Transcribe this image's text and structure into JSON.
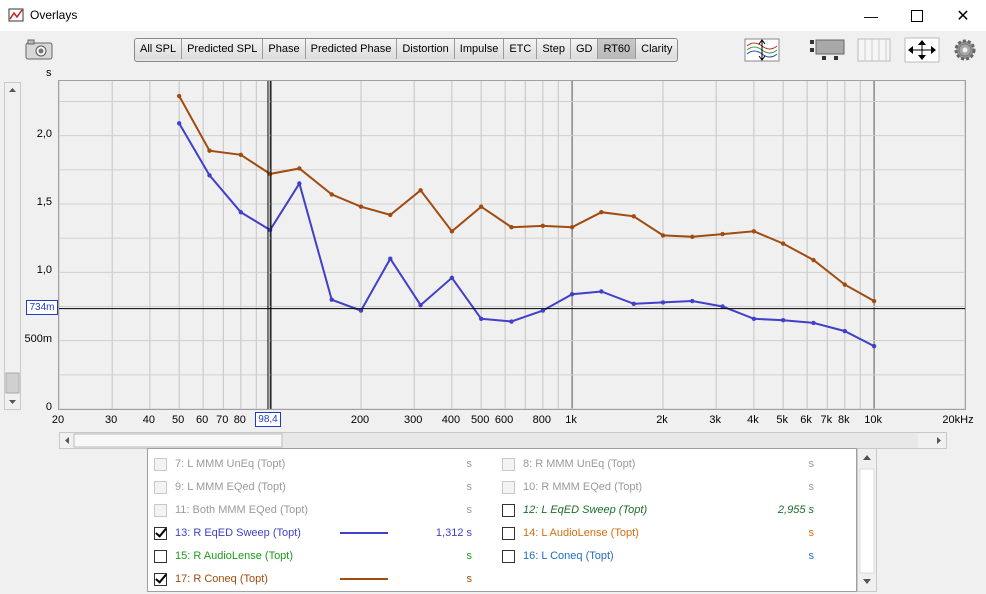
{
  "window": {
    "title": "Overlays"
  },
  "tabs": [
    {
      "label": "All SPL",
      "active": false
    },
    {
      "label": "Predicted SPL",
      "active": false
    },
    {
      "label": "Phase",
      "active": false
    },
    {
      "label": "Predicted Phase",
      "active": false
    },
    {
      "label": "Distortion",
      "active": false
    },
    {
      "label": "Impulse",
      "active": false
    },
    {
      "label": "ETC",
      "active": false
    },
    {
      "label": "Step",
      "active": false
    },
    {
      "label": "GD",
      "active": false
    },
    {
      "label": "RT60",
      "active": true
    },
    {
      "label": "Clarity",
      "active": false
    }
  ],
  "graph": {
    "unit": "s",
    "y_ticks": [
      "0",
      "500m",
      "1,0",
      "1,5",
      "2,0"
    ],
    "x_ticks": [
      "20",
      "30",
      "40",
      "50",
      "60",
      "70",
      "80",
      "",
      "200",
      "300",
      "400",
      "500",
      "600",
      "800",
      "1k",
      "2k",
      "3k",
      "4k",
      "5k",
      "6k",
      "7k",
      "8k",
      "10k",
      "20kHz"
    ],
    "cursor_y": "734m",
    "cursor_x": "98,4"
  },
  "chart_data": {
    "type": "line",
    "xlabel": "",
    "ylabel": "s",
    "x_scale": "log",
    "xlim": [
      20,
      20000
    ],
    "ylim": [
      0,
      2.4
    ],
    "grid": true,
    "cursor": {
      "x": 98.4,
      "y": 0.734
    },
    "series": [
      {
        "name": "13: R EqED Sweep (Topt)",
        "color": "#4040c8",
        "x": [
          50,
          63,
          80,
          100,
          125,
          160,
          200,
          250,
          315,
          400,
          500,
          630,
          800,
          1000,
          1250,
          1600,
          2000,
          2500,
          3150,
          4000,
          5000,
          6300,
          8000,
          10000
        ],
        "y": [
          2.09,
          1.71,
          1.44,
          1.31,
          1.65,
          0.8,
          0.72,
          1.1,
          0.76,
          0.96,
          0.66,
          0.64,
          0.72,
          0.84,
          0.86,
          0.77,
          0.78,
          0.79,
          0.75,
          0.66,
          0.65,
          0.63,
          0.57,
          0.46
        ]
      },
      {
        "name": "17: R Coneq (Topt)",
        "color": "#a04c10",
        "x": [
          50,
          63,
          80,
          100,
          125,
          160,
          200,
          250,
          315,
          400,
          500,
          630,
          800,
          1000,
          1250,
          1600,
          2000,
          2500,
          3150,
          4000,
          5000,
          6300,
          8000,
          10000
        ],
        "y": [
          2.29,
          1.89,
          1.86,
          1.72,
          1.76,
          1.57,
          1.48,
          1.42,
          1.6,
          1.3,
          1.48,
          1.33,
          1.34,
          1.33,
          1.44,
          1.41,
          1.27,
          1.26,
          1.28,
          1.3,
          1.21,
          1.09,
          0.91,
          0.79
        ]
      }
    ]
  },
  "legend": [
    {
      "label": "7: L MMM UnEq (Topt)",
      "value": "s",
      "checked": false,
      "dim": true,
      "color": "#9a9a9a",
      "col": 0,
      "row": 0
    },
    {
      "label": "8: R MMM UnEq (Topt)",
      "value": "s",
      "checked": false,
      "dim": true,
      "color": "#9a9a9a",
      "col": 1,
      "row": 0
    },
    {
      "label": "9: L MMM EQed (Topt)",
      "value": "s",
      "checked": false,
      "dim": true,
      "color": "#9a9a9a",
      "col": 0,
      "row": 1
    },
    {
      "label": "10: R MMM EQed (Topt)",
      "value": "s",
      "checked": false,
      "dim": true,
      "color": "#9a9a9a",
      "col": 1,
      "row": 1
    },
    {
      "label": "11: Both MMM EQed (Topt)",
      "value": "s",
      "checked": false,
      "dim": true,
      "color": "#9a9a9a",
      "col": 0,
      "row": 2
    },
    {
      "label": "12: L EqED Sweep (Topt)",
      "value": "2,955 s",
      "checked": false,
      "dim": false,
      "color": "#1c6e2a",
      "italic": true,
      "col": 1,
      "row": 2
    },
    {
      "label": "13: R EqED Sweep (Topt)",
      "value": "1,312 s",
      "checked": true,
      "dim": false,
      "color": "#4040c8",
      "line": true,
      "col": 0,
      "row": 3
    },
    {
      "label": "14: L AudioLense (Topt)",
      "value": "s",
      "checked": false,
      "dim": false,
      "color": "#d07010",
      "col": 1,
      "row": 3
    },
    {
      "label": "15: R AudioLense (Topt)",
      "value": "s",
      "checked": false,
      "dim": false,
      "color": "#1c9a1c",
      "col": 0,
      "row": 4
    },
    {
      "label": "16: L Coneq (Topt)",
      "value": "s",
      "checked": false,
      "dim": false,
      "color": "#2070c0",
      "col": 1,
      "row": 4
    },
    {
      "label": "17: R Coneq (Topt)",
      "value": "s",
      "checked": true,
      "dim": false,
      "color": "#a04c10",
      "line": true,
      "col": 0,
      "row": 5
    }
  ]
}
